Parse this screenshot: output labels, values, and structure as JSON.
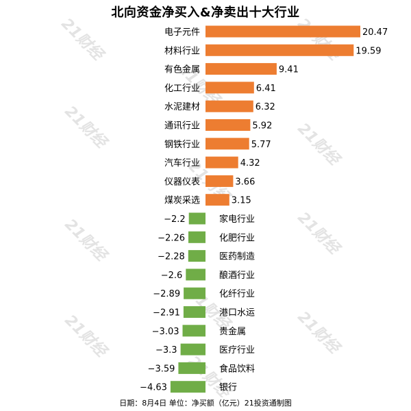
{
  "chart_data": {
    "type": "bar",
    "title": "北向资金净买入&净卖出十大行业",
    "categories": [
      "电子元件",
      "材料行业",
      "有色金属",
      "化工行业",
      "水泥建材",
      "通讯行业",
      "钢铁行业",
      "汽车行业",
      "仪器仪表",
      "煤炭采选",
      "家电行业",
      "化肥行业",
      "医药制造",
      "酿酒行业",
      "化纤行业",
      "港口水运",
      "贵金属",
      "医疗行业",
      "食品饮料",
      "银行"
    ],
    "values": [
      20.47,
      19.59,
      9.41,
      6.41,
      6.32,
      5.92,
      5.77,
      4.32,
      3.66,
      3.15,
      -2.2,
      -2.26,
      -2.28,
      -2.6,
      -2.89,
      -2.91,
      -3.03,
      -3.3,
      -3.59,
      -4.63
    ],
    "value_labels": [
      "20.47",
      "19.59",
      "9.41",
      "6.41",
      "6.32",
      "5.92",
      "5.77",
      "4.32",
      "3.66",
      "3.15",
      "−2.2",
      "−2.26",
      "−2.28",
      "−2.6",
      "−2.89",
      "−2.91",
      "−3.03",
      "−3.3",
      "−3.59",
      "−4.63"
    ],
    "colors": {
      "positive": "#ed7d31",
      "negative": "#70ad47"
    },
    "orientation": "horizontal",
    "grid": false
  },
  "footer": "日期：8月4日 单位：净买额（亿元）21投资通制图",
  "watermark": "21财经"
}
